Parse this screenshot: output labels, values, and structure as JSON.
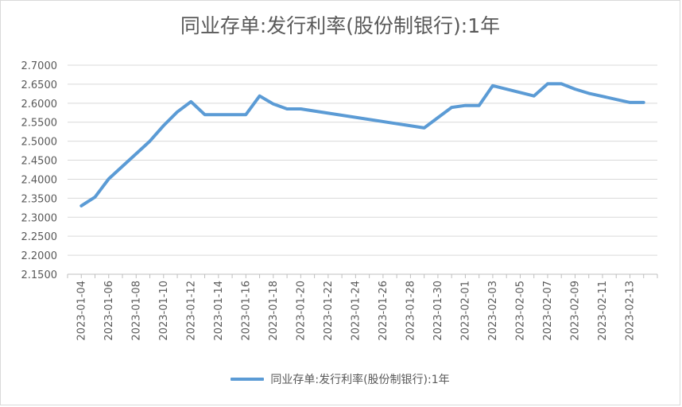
{
  "chart_data": {
    "type": "line",
    "title": "同业存单:发行利率(股份制银行):1年",
    "xlabel": "",
    "ylabel": "",
    "ylim": [
      2.15,
      2.7
    ],
    "yticks": [
      "2.7000",
      "2.6500",
      "2.6000",
      "2.5500",
      "2.5000",
      "2.4500",
      "2.4000",
      "2.3500",
      "2.3000",
      "2.2500",
      "2.2000",
      "2.1500"
    ],
    "xtick_labels": [
      "2023-01-04",
      "2023-01-06",
      "2023-01-08",
      "2023-01-10",
      "2023-01-12",
      "2023-01-14",
      "2023-01-16",
      "2023-01-18",
      "2023-01-20",
      "2023-01-22",
      "2023-01-24",
      "2023-01-26",
      "2023-01-28",
      "2023-01-30",
      "2023-02-01",
      "2023-02-03",
      "2023-02-05",
      "2023-02-07",
      "2023-02-09",
      "2023-02-11",
      "2023-02-13"
    ],
    "grid": true,
    "legend_position": "bottom",
    "color": "#5b9bd5",
    "series": [
      {
        "name": "同业存单:发行利率(股份制银行):1年",
        "x": [
          "2023-01-04",
          "2023-01-05",
          "2023-01-06",
          "2023-01-09",
          "2023-01-10",
          "2023-01-11",
          "2023-01-12",
          "2023-01-13",
          "2023-01-16",
          "2023-01-17",
          "2023-01-18",
          "2023-01-19",
          "2023-01-20",
          "2023-01-29",
          "2023-01-30",
          "2023-01-31",
          "2023-02-01",
          "2023-02-02",
          "2023-02-03",
          "2023-02-06",
          "2023-02-07",
          "2023-02-08",
          "2023-02-09",
          "2023-02-10",
          "2023-02-13",
          "2023-02-14"
        ],
        "values": [
          2.33,
          2.353,
          2.401,
          2.5,
          2.541,
          2.577,
          2.604,
          2.57,
          2.57,
          2.619,
          2.598,
          2.585,
          2.585,
          2.535,
          2.562,
          2.589,
          2.594,
          2.594,
          2.646,
          2.619,
          2.651,
          2.651,
          2.637,
          2.626,
          2.602,
          2.602
        ]
      }
    ]
  }
}
